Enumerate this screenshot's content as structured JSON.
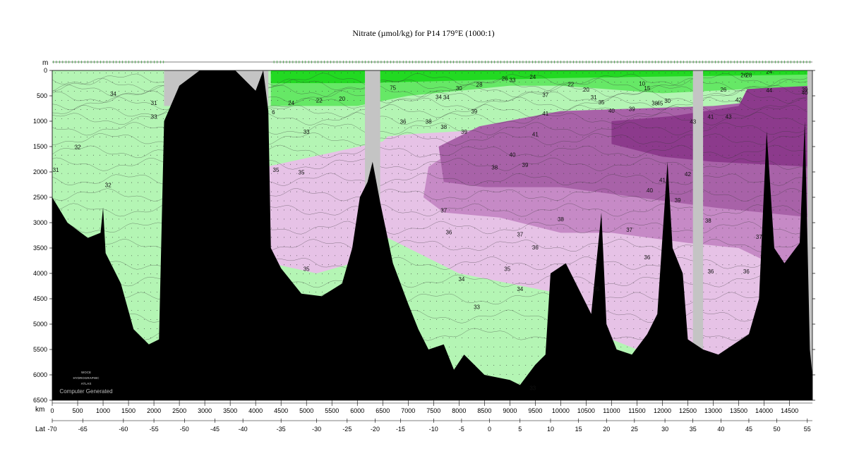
{
  "chart_data": {
    "type": "heatmap",
    "title": "Nitrate (µmol/kg) for P14 179°E (1000:1)",
    "ylabel": "m",
    "xlabel": "km",
    "x2label": "Lat",
    "ylim": [
      6500,
      0
    ],
    "xlim": [
      0,
      14950
    ],
    "yticks": [
      0,
      500,
      1000,
      1500,
      2000,
      2500,
      3000,
      3500,
      4000,
      4500,
      5000,
      5500,
      6000,
      6500
    ],
    "xticks": [
      0,
      500,
      1000,
      1500,
      2000,
      2500,
      3000,
      3500,
      4000,
      4500,
      5000,
      5500,
      6000,
      6500,
      7000,
      7500,
      8000,
      8500,
      9000,
      9500,
      10000,
      10500,
      11000,
      11500,
      12000,
      12500,
      13000,
      13500,
      14000,
      14500
    ],
    "lat_ticks": [
      {
        "label": "-70",
        "km": 0
      },
      {
        "label": "-65",
        "km": 600
      },
      {
        "label": "-60",
        "km": 1400
      },
      {
        "label": "-55",
        "km": 2000
      },
      {
        "label": "-50",
        "km": 2600
      },
      {
        "label": "-45",
        "km": 3200
      },
      {
        "label": "-40",
        "km": 3750
      },
      {
        "label": "-35",
        "km": 4500
      },
      {
        "label": "-30",
        "km": 5200
      },
      {
        "label": "-25",
        "km": 5800
      },
      {
        "label": "-20",
        "km": 6350
      },
      {
        "label": "-15",
        "km": 6850
      },
      {
        "label": "-10",
        "km": 7500
      },
      {
        "label": "-5",
        "km": 8050
      },
      {
        "label": "0",
        "km": 8600
      },
      {
        "label": "5",
        "km": 9200
      },
      {
        "label": "10",
        "km": 9800
      },
      {
        "label": "15",
        "km": 10350
      },
      {
        "label": "20",
        "km": 10900
      },
      {
        "label": "25",
        "km": 11450
      },
      {
        "label": "30",
        "km": 12050
      },
      {
        "label": "35",
        "km": 12600
      },
      {
        "label": "40",
        "km": 13150
      },
      {
        "label": "45",
        "km": 13700
      },
      {
        "label": "50",
        "km": 14250
      },
      {
        "label": "55",
        "km": 14850
      }
    ],
    "colorbands": [
      {
        "range": "< 22",
        "color": "#22d922"
      },
      {
        "range": "22-30",
        "color": "#66e866"
      },
      {
        "range": "30-35",
        "color": "#b4f5b4"
      },
      {
        "range": "35-37",
        "color": "#e6c2e6"
      },
      {
        "range": "37-39",
        "color": "#c68ac6"
      },
      {
        "range": "39-41",
        "color": "#a862a8"
      },
      {
        "range": "> 41",
        "color": "#8c3a8c"
      }
    ],
    "contour_labels": [
      {
        "text": "34",
        "km": 1200,
        "depth": 500
      },
      {
        "text": "31",
        "km": 2000,
        "depth": 680
      },
      {
        "text": "33",
        "km": 2000,
        "depth": 950
      },
      {
        "text": "32",
        "km": 500,
        "depth": 1550
      },
      {
        "text": "31",
        "km": 70,
        "depth": 2000
      },
      {
        "text": "32",
        "km": 1100,
        "depth": 2300
      },
      {
        "text": "24",
        "km": 4700,
        "depth": 680
      },
      {
        "text": "22",
        "km": 5250,
        "depth": 630
      },
      {
        "text": "20",
        "km": 5700,
        "depth": 600
      },
      {
        "text": "6",
        "km": 4350,
        "depth": 860
      },
      {
        "text": "33",
        "km": 5000,
        "depth": 1250
      },
      {
        "text": "35",
        "km": 4400,
        "depth": 2000
      },
      {
        "text": "35",
        "km": 4900,
        "depth": 2050
      },
      {
        "text": "35",
        "km": 5000,
        "depth": 3950
      },
      {
        "text": "75",
        "km": 6700,
        "depth": 380
      },
      {
        "text": "36",
        "km": 6900,
        "depth": 1050
      },
      {
        "text": "38",
        "km": 7400,
        "depth": 1050
      },
      {
        "text": "38",
        "km": 7700,
        "depth": 1150
      },
      {
        "text": "39",
        "km": 8100,
        "depth": 1250
      },
      {
        "text": "39",
        "km": 8300,
        "depth": 850
      },
      {
        "text": "34",
        "km": 7600,
        "depth": 560
      },
      {
        "text": "34",
        "km": 7750,
        "depth": 570
      },
      {
        "text": "30",
        "km": 8000,
        "depth": 390
      },
      {
        "text": "28",
        "km": 8400,
        "depth": 320
      },
      {
        "text": "26",
        "km": 8900,
        "depth": 200
      },
      {
        "text": "33",
        "km": 9050,
        "depth": 230
      },
      {
        "text": "24",
        "km": 9450,
        "depth": 170
      },
      {
        "text": "22",
        "km": 10200,
        "depth": 310
      },
      {
        "text": "20",
        "km": 10500,
        "depth": 420
      },
      {
        "text": "37",
        "km": 9700,
        "depth": 520
      },
      {
        "text": "41",
        "km": 9700,
        "depth": 890
      },
      {
        "text": "41",
        "km": 9500,
        "depth": 1300
      },
      {
        "text": "40",
        "km": 9050,
        "depth": 1700
      },
      {
        "text": "39",
        "km": 9300,
        "depth": 1900
      },
      {
        "text": "38",
        "km": 8700,
        "depth": 1950
      },
      {
        "text": "37",
        "km": 7700,
        "depth": 2800
      },
      {
        "text": "38",
        "km": 10000,
        "depth": 2970
      },
      {
        "text": "37",
        "km": 11350,
        "depth": 3180
      },
      {
        "text": "36",
        "km": 7800,
        "depth": 3230
      },
      {
        "text": "37",
        "km": 9200,
        "depth": 3270
      },
      {
        "text": "36",
        "km": 9500,
        "depth": 3530
      },
      {
        "text": "35",
        "km": 8950,
        "depth": 3950
      },
      {
        "text": "34",
        "km": 8050,
        "depth": 4150
      },
      {
        "text": "34",
        "km": 9200,
        "depth": 4350
      },
      {
        "text": "33",
        "km": 8350,
        "depth": 4700
      },
      {
        "text": "33",
        "km": 9450,
        "depth": 6300
      },
      {
        "text": "35",
        "km": 10700,
        "depth": 4350
      },
      {
        "text": "31",
        "km": 10650,
        "depth": 570
      },
      {
        "text": "35",
        "km": 10800,
        "depth": 670
      },
      {
        "text": "40",
        "km": 11000,
        "depth": 830
      },
      {
        "text": "39",
        "km": 11400,
        "depth": 800
      },
      {
        "text": "10",
        "km": 11600,
        "depth": 300
      },
      {
        "text": "15",
        "km": 11700,
        "depth": 390
      },
      {
        "text": "38",
        "km": 11850,
        "depth": 690
      },
      {
        "text": "45",
        "km": 11950,
        "depth": 690
      },
      {
        "text": "30",
        "km": 12100,
        "depth": 640
      },
      {
        "text": "43",
        "km": 12600,
        "depth": 1050
      },
      {
        "text": "41",
        "km": 12950,
        "depth": 950
      },
      {
        "text": "43",
        "km": 13300,
        "depth": 950
      },
      {
        "text": "42",
        "km": 12500,
        "depth": 2080
      },
      {
        "text": "41",
        "km": 12000,
        "depth": 2200
      },
      {
        "text": "40",
        "km": 11750,
        "depth": 2400
      },
      {
        "text": "39",
        "km": 12300,
        "depth": 2600
      },
      {
        "text": "38",
        "km": 12900,
        "depth": 3000
      },
      {
        "text": "37",
        "km": 13900,
        "depth": 3320
      },
      {
        "text": "36",
        "km": 11700,
        "depth": 3720
      },
      {
        "text": "36",
        "km": 12950,
        "depth": 4000
      },
      {
        "text": "36",
        "km": 13650,
        "depth": 4000
      },
      {
        "text": "26",
        "km": 13200,
        "depth": 420
      },
      {
        "text": "42",
        "km": 13500,
        "depth": 620
      },
      {
        "text": "26",
        "km": 13600,
        "depth": 130
      },
      {
        "text": "28",
        "km": 13700,
        "depth": 130
      },
      {
        "text": "24",
        "km": 14100,
        "depth": 60
      },
      {
        "text": "44",
        "km": 14100,
        "depth": 430
      },
      {
        "text": "39",
        "km": 14800,
        "depth": 420
      },
      {
        "text": "40",
        "km": 14800,
        "depth": 480
      }
    ],
    "grid": false
  },
  "watermark": {
    "line1": "WOCE",
    "line2": "HYDROGRAPHIC",
    "line3": "ATLAS",
    "line4": "Computer Generated"
  }
}
